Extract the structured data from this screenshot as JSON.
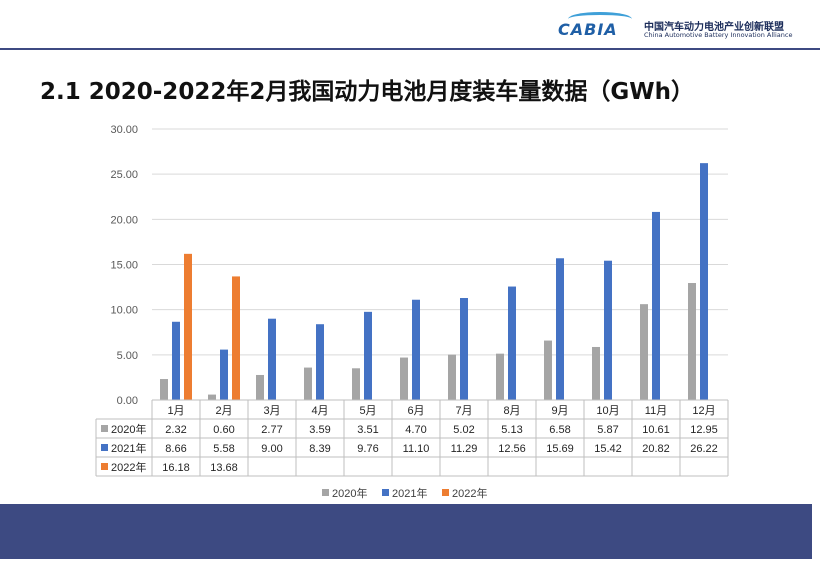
{
  "header": {
    "logo_text": "CABIA",
    "org_name_cn": "中国汽车动力电池产业创新联盟",
    "org_name_en": "China Automotive Battery Innovation Alliance",
    "title": "2.1 2020-2022年2月我国动力电池月度装车量数据（GWh）"
  },
  "colors": {
    "2020年": "#a5a5a5",
    "2021年": "#4472c4",
    "2022年": "#ed7d31",
    "band": "#3d4a82"
  },
  "chart_data": {
    "type": "bar",
    "categories": [
      "1月",
      "2月",
      "3月",
      "4月",
      "5月",
      "6月",
      "7月",
      "8月",
      "9月",
      "10月",
      "11月",
      "12月"
    ],
    "series": [
      {
        "name": "2020年",
        "values": [
          "2.32",
          "0.60",
          "2.77",
          "3.59",
          "3.51",
          "4.70",
          "5.02",
          "5.13",
          "6.58",
          "5.87",
          "10.61",
          "12.95"
        ]
      },
      {
        "name": "2021年",
        "values": [
          "8.66",
          "5.58",
          "9.00",
          "8.39",
          "9.76",
          "11.10",
          "11.29",
          "12.56",
          "15.69",
          "15.42",
          "20.82",
          "26.22"
        ]
      },
      {
        "name": "2022年",
        "values": [
          "16.18",
          "13.68",
          null,
          null,
          null,
          null,
          null,
          null,
          null,
          null,
          null,
          null
        ]
      }
    ],
    "y_ticks": [
      "0.00",
      "5.00",
      "10.00",
      "15.00",
      "20.00",
      "25.00",
      "30.00"
    ],
    "ylim": [
      0,
      30
    ],
    "grid": "horizontal",
    "legend": "bottom",
    "data_table": true
  }
}
